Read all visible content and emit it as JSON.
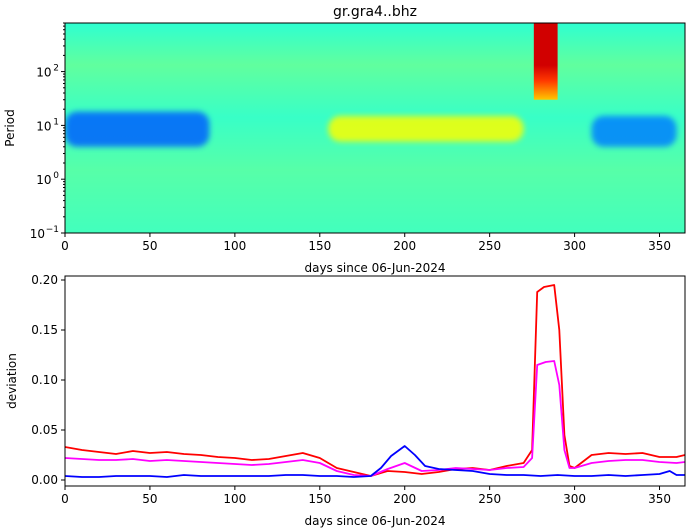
{
  "chart_data": [
    {
      "type": "heatmap",
      "title": "gr.gra4..bhz",
      "xlabel": "days since 06-Jun-2024",
      "ylabel": "Period",
      "xlim": [
        0,
        365
      ],
      "ylim": [
        0.1,
        800
      ],
      "y_scale": "log",
      "x_ticks": [
        0,
        50,
        100,
        150,
        200,
        250,
        300,
        350
      ],
      "y_ticks": [
        {
          "value": 0.1,
          "base": "10",
          "exp": "−1"
        },
        {
          "value": 1,
          "base": "10",
          "exp": "0"
        },
        {
          "value": 10,
          "base": "10",
          "exp": "1"
        },
        {
          "value": 100,
          "base": "10",
          "exp": "2"
        }
      ],
      "colormap": "jet",
      "features": [
        {
          "x": [
            0,
            85
          ],
          "period": [
            4,
            18
          ],
          "level": 0.22
        },
        {
          "x": [
            310,
            360
          ],
          "period": [
            4,
            15
          ],
          "level": 0.25
        },
        {
          "x": [
            155,
            270
          ],
          "period": [
            5,
            15
          ],
          "level": 0.62
        },
        {
          "x": [
            276,
            290
          ],
          "period": [
            30,
            800
          ],
          "level": 0.92
        }
      ]
    },
    {
      "type": "line",
      "title": "",
      "xlabel": "days since 06-Jun-2024",
      "ylabel": "deviation",
      "xlim": [
        0,
        365
      ],
      "ylim": [
        -0.006,
        0.204
      ],
      "x_ticks": [
        0,
        50,
        100,
        150,
        200,
        250,
        300,
        350
      ],
      "y_ticks": [
        0.0,
        0.05,
        0.1,
        0.15,
        0.2
      ],
      "y_tick_labels": [
        "0.00",
        "0.05",
        "0.10",
        "0.15",
        "0.20"
      ],
      "series": [
        {
          "color": "#ff0000",
          "points": [
            [
              0,
              0.033
            ],
            [
              10,
              0.03
            ],
            [
              20,
              0.028
            ],
            [
              30,
              0.026
            ],
            [
              40,
              0.029
            ],
            [
              50,
              0.027
            ],
            [
              60,
              0.028
            ],
            [
              70,
              0.026
            ],
            [
              80,
              0.025
            ],
            [
              90,
              0.023
            ],
            [
              100,
              0.022
            ],
            [
              110,
              0.02
            ],
            [
              120,
              0.021
            ],
            [
              130,
              0.024
            ],
            [
              140,
              0.027
            ],
            [
              150,
              0.022
            ],
            [
              160,
              0.012
            ],
            [
              170,
              0.008
            ],
            [
              180,
              0.004
            ],
            [
              190,
              0.009
            ],
            [
              200,
              0.008
            ],
            [
              210,
              0.006
            ],
            [
              220,
              0.008
            ],
            [
              230,
              0.011
            ],
            [
              240,
              0.012
            ],
            [
              250,
              0.01
            ],
            [
              260,
              0.014
            ],
            [
              270,
              0.017
            ],
            [
              275,
              0.03
            ],
            [
              278,
              0.188
            ],
            [
              282,
              0.193
            ],
            [
              288,
              0.195
            ],
            [
              291,
              0.15
            ],
            [
              294,
              0.045
            ],
            [
              297,
              0.014
            ],
            [
              300,
              0.012
            ],
            [
              310,
              0.025
            ],
            [
              320,
              0.027
            ],
            [
              330,
              0.026
            ],
            [
              340,
              0.027
            ],
            [
              350,
              0.023
            ],
            [
              360,
              0.023
            ],
            [
              365,
              0.025
            ]
          ]
        },
        {
          "color": "#ff00ff",
          "points": [
            [
              0,
              0.022
            ],
            [
              10,
              0.021
            ],
            [
              20,
              0.02
            ],
            [
              30,
              0.02
            ],
            [
              40,
              0.021
            ],
            [
              50,
              0.019
            ],
            [
              60,
              0.02
            ],
            [
              70,
              0.019
            ],
            [
              80,
              0.018
            ],
            [
              90,
              0.017
            ],
            [
              100,
              0.016
            ],
            [
              110,
              0.015
            ],
            [
              120,
              0.016
            ],
            [
              130,
              0.018
            ],
            [
              140,
              0.02
            ],
            [
              150,
              0.017
            ],
            [
              160,
              0.009
            ],
            [
              170,
              0.005
            ],
            [
              180,
              0.004
            ],
            [
              190,
              0.011
            ],
            [
              200,
              0.017
            ],
            [
              210,
              0.009
            ],
            [
              220,
              0.01
            ],
            [
              230,
              0.012
            ],
            [
              240,
              0.011
            ],
            [
              250,
              0.01
            ],
            [
              260,
              0.012
            ],
            [
              270,
              0.013
            ],
            [
              275,
              0.022
            ],
            [
              278,
              0.115
            ],
            [
              283,
              0.118
            ],
            [
              288,
              0.119
            ],
            [
              291,
              0.095
            ],
            [
              294,
              0.03
            ],
            [
              297,
              0.012
            ],
            [
              300,
              0.012
            ],
            [
              310,
              0.017
            ],
            [
              320,
              0.019
            ],
            [
              330,
              0.02
            ],
            [
              340,
              0.02
            ],
            [
              350,
              0.018
            ],
            [
              360,
              0.017
            ],
            [
              365,
              0.018
            ]
          ]
        },
        {
          "color": "#0000ff",
          "points": [
            [
              0,
              0.004
            ],
            [
              10,
              0.003
            ],
            [
              20,
              0.003
            ],
            [
              30,
              0.004
            ],
            [
              40,
              0.004
            ],
            [
              50,
              0.004
            ],
            [
              60,
              0.003
            ],
            [
              70,
              0.005
            ],
            [
              80,
              0.004
            ],
            [
              90,
              0.004
            ],
            [
              100,
              0.004
            ],
            [
              110,
              0.004
            ],
            [
              120,
              0.004
            ],
            [
              130,
              0.005
            ],
            [
              140,
              0.005
            ],
            [
              150,
              0.004
            ],
            [
              160,
              0.004
            ],
            [
              170,
              0.003
            ],
            [
              180,
              0.004
            ],
            [
              186,
              0.012
            ],
            [
              192,
              0.024
            ],
            [
              200,
              0.034
            ],
            [
              206,
              0.025
            ],
            [
              212,
              0.014
            ],
            [
              220,
              0.011
            ],
            [
              230,
              0.01
            ],
            [
              240,
              0.009
            ],
            [
              250,
              0.006
            ],
            [
              260,
              0.005
            ],
            [
              270,
              0.005
            ],
            [
              280,
              0.004
            ],
            [
              290,
              0.005
            ],
            [
              300,
              0.004
            ],
            [
              310,
              0.004
            ],
            [
              320,
              0.005
            ],
            [
              330,
              0.004
            ],
            [
              340,
              0.005
            ],
            [
              350,
              0.006
            ],
            [
              356,
              0.009
            ],
            [
              360,
              0.005
            ],
            [
              365,
              0.005
            ]
          ]
        }
      ]
    }
  ]
}
